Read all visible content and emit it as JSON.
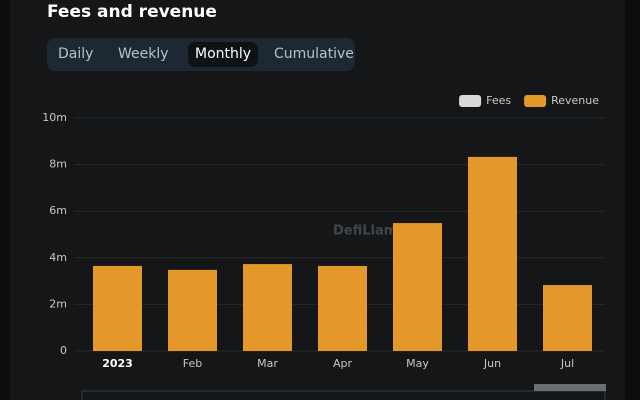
{
  "header": {
    "title": "Fees and revenue"
  },
  "tabs": {
    "items": [
      "Daily",
      "Weekly",
      "Monthly",
      "Cumulative"
    ],
    "active": "Monthly"
  },
  "chart_data": {
    "type": "bar",
    "watermark": "DefiLlama",
    "categories": [
      "2023",
      "Feb",
      "Mar",
      "Apr",
      "May",
      "Jun",
      "Jul"
    ],
    "series": [
      {
        "name": "Fees",
        "color": "#d9d9d9",
        "values": [
          null,
          null,
          null,
          null,
          null,
          null,
          null
        ]
      },
      {
        "name": "Revenue",
        "color": "#e5982a",
        "values": [
          3650000,
          3480000,
          3730000,
          3650000,
          5490000,
          8330000,
          2830000
        ]
      }
    ],
    "ylim": [
      0,
      10000000
    ],
    "yticks": [
      0,
      {
        "value": 2000000,
        "label": "2m"
      },
      {
        "value": 4000000,
        "label": "4m"
      },
      {
        "value": 6000000,
        "label": "6m"
      },
      {
        "value": 8000000,
        "label": "8m"
      },
      {
        "value": 10000000,
        "label": "10m"
      }
    ],
    "grid": true,
    "legend": "top-right"
  }
}
